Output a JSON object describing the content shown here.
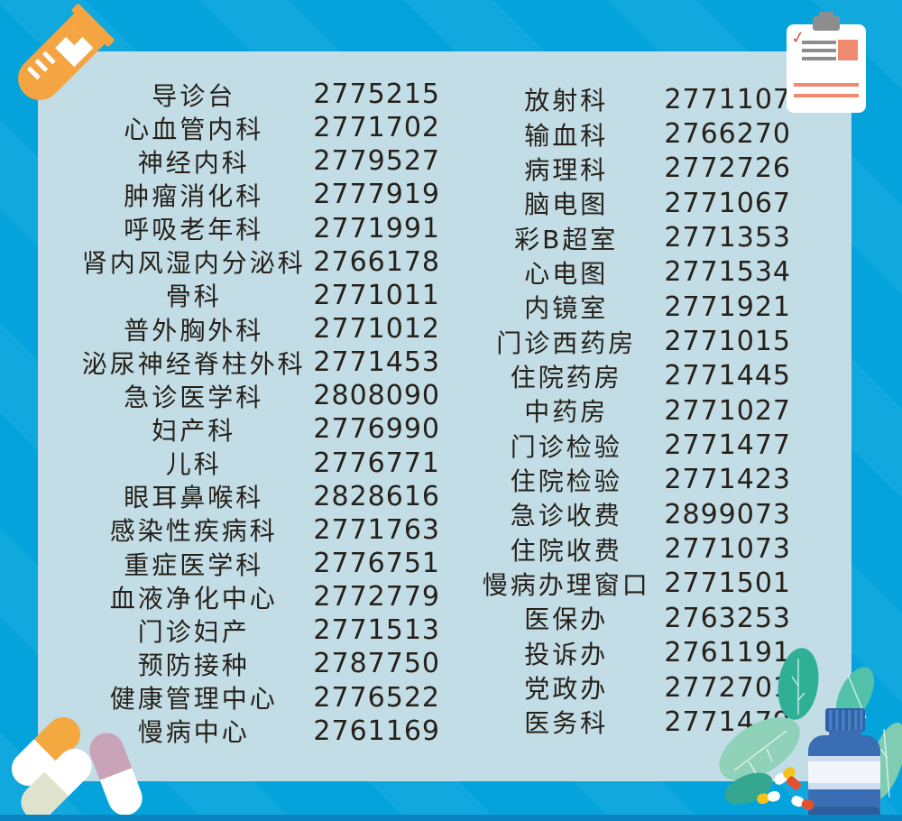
{
  "palette": {
    "background": "#04a3dc",
    "panel": "#c2dde5",
    "bottom_strip": "#0a84c0",
    "text": "#262019"
  },
  "directory": {
    "left": [
      {
        "dept": "导诊台",
        "phone": "2775215"
      },
      {
        "dept": "心血管内科",
        "phone": "2771702"
      },
      {
        "dept": "神经内科",
        "phone": "2779527"
      },
      {
        "dept": "肿瘤消化科",
        "phone": "2777919"
      },
      {
        "dept": "呼吸老年科",
        "phone": "2771991"
      },
      {
        "dept": "肾内风湿内分泌科",
        "phone": "2766178"
      },
      {
        "dept": "骨科",
        "phone": "2771011"
      },
      {
        "dept": "普外胸外科",
        "phone": "2771012"
      },
      {
        "dept": "泌尿神经脊柱外科",
        "phone": "2771453"
      },
      {
        "dept": "急诊医学科",
        "phone": "2808090"
      },
      {
        "dept": "妇产科",
        "phone": "2776990"
      },
      {
        "dept": "儿科",
        "phone": "2776771"
      },
      {
        "dept": "眼耳鼻喉科",
        "phone": "2828616"
      },
      {
        "dept": "感染性疾病科",
        "phone": "2771763"
      },
      {
        "dept": "重症医学科",
        "phone": "2776751"
      },
      {
        "dept": "血液净化中心",
        "phone": "2772779"
      },
      {
        "dept": "门诊妇产",
        "phone": "2771513"
      },
      {
        "dept": "预防接种",
        "phone": "2787750"
      },
      {
        "dept": "健康管理中心",
        "phone": "2776522"
      },
      {
        "dept": "慢病中心",
        "phone": "2761169"
      }
    ],
    "right": [
      {
        "dept": "放射科",
        "phone": "2771107"
      },
      {
        "dept": "输血科",
        "phone": "2766270"
      },
      {
        "dept": "病理科",
        "phone": "2772726"
      },
      {
        "dept": "脑电图",
        "phone": "2771067"
      },
      {
        "dept": "彩B超室",
        "phone": "2771353"
      },
      {
        "dept": "心电图",
        "phone": "2771534"
      },
      {
        "dept": "内镜室",
        "phone": "2771921"
      },
      {
        "dept": "门诊西药房",
        "phone": "2771015"
      },
      {
        "dept": "住院药房",
        "phone": "2771445"
      },
      {
        "dept": "中药房",
        "phone": "2771027"
      },
      {
        "dept": "门诊检验",
        "phone": "2771477"
      },
      {
        "dept": "住院检验",
        "phone": "2771423"
      },
      {
        "dept": "急诊收费",
        "phone": "2899073"
      },
      {
        "dept": "住院收费",
        "phone": "2771073"
      },
      {
        "dept": "慢病办理窗口",
        "phone": "2771501"
      },
      {
        "dept": "医保办",
        "phone": "2763253"
      },
      {
        "dept": "投诉办",
        "phone": "2761191"
      },
      {
        "dept": "党政办",
        "phone": "2772701"
      },
      {
        "dept": "医务科",
        "phone": "2771479"
      }
    ]
  },
  "decorations": {
    "test_tube": {
      "icon": "test-tube-icon",
      "color": "#f4a440"
    },
    "clipboard": {
      "icon": "clipboard-icon",
      "check_glyph": "✓",
      "paper_color": "#ffffff",
      "clip_color": "#8d8d8d",
      "line_color": "#8d8d8d",
      "accent_color": "#ef8a70",
      "check_color": "#e0544a"
    },
    "pills_bottom_left": {
      "icon": "pills-icon",
      "colors": [
        "#f3a93f",
        "#dfe3cd",
        "#c9a3b8",
        "#ffffff"
      ]
    },
    "bottle_cluster": {
      "icon": "medicine-bottle-icon",
      "bottle_color": "#3a6db3",
      "cap_color": "#2e62a8",
      "label_color": "#eff4fa",
      "leaf_colors": [
        "#2fb096",
        "#8fd2b9",
        "#52c2aa",
        "#35a68f"
      ],
      "pill_colors": [
        "#f5c21a",
        "#e2502e",
        "#ffffff"
      ]
    }
  }
}
